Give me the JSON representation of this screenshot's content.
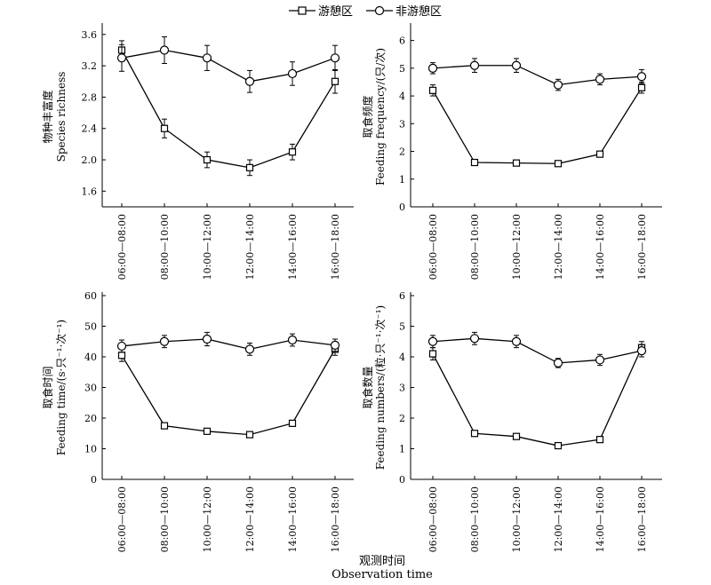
{
  "legend": {
    "series_a": "游憩区",
    "series_b": "非游憩区"
  },
  "x_title_cn": "观测时间",
  "x_title_en": "Observation time",
  "chart_data": [
    {
      "type": "line",
      "ylabel_cn": "物种丰富度",
      "ylabel_en": "Species richness",
      "ylim": [
        1.4,
        3.7
      ],
      "yticks": [
        1.6,
        2.0,
        2.4,
        2.8,
        3.2,
        3.6
      ],
      "ytick_labels": [
        "1.6",
        "2.0",
        "2.4",
        "2.8",
        "3.2",
        "3.6"
      ],
      "categories": [
        "06:00—08:00",
        "08:00—10:00",
        "10:00—12:00",
        "12:00—14:00",
        "14:00—16:00",
        "16:00—18:00"
      ],
      "series": [
        {
          "name": "游憩区",
          "marker": "square",
          "values": [
            3.4,
            2.4,
            2.0,
            1.9,
            2.1,
            3.0
          ],
          "err": [
            0.12,
            0.12,
            0.1,
            0.1,
            0.1,
            0.15
          ]
        },
        {
          "name": "非游憩区",
          "marker": "circle",
          "values": [
            3.3,
            3.4,
            3.3,
            3.0,
            3.1,
            3.3
          ],
          "err": [
            0.17,
            0.17,
            0.16,
            0.14,
            0.15,
            0.16
          ]
        }
      ]
    },
    {
      "type": "line",
      "ylabel_cn": "取食频度",
      "ylabel_en": "Feeding frequency/(只/次)",
      "ylim": [
        0,
        6.5
      ],
      "yticks": [
        0,
        1,
        2,
        3,
        4,
        5,
        6
      ],
      "ytick_labels": [
        "0",
        "1",
        "2",
        "3",
        "4",
        "5",
        "6"
      ],
      "categories": [
        "06:00—08:00",
        "08:00—10:00",
        "10:00—12:00",
        "12:00—14:00",
        "14:00—16:00",
        "16:00—18:00"
      ],
      "series": [
        {
          "name": "游憩区",
          "marker": "square",
          "values": [
            4.2,
            1.6,
            1.58,
            1.56,
            1.9,
            4.3
          ],
          "err": [
            0.2,
            0.05,
            0.05,
            0.05,
            0.06,
            0.2
          ]
        },
        {
          "name": "非游憩区",
          "marker": "circle",
          "values": [
            5.0,
            5.1,
            5.1,
            4.4,
            4.6,
            4.7
          ],
          "err": [
            0.2,
            0.25,
            0.25,
            0.2,
            0.2,
            0.25
          ]
        }
      ]
    },
    {
      "type": "line",
      "ylabel_cn": "取食时间",
      "ylabel_en": "Feeding time/(s·只⁻¹·次⁻¹)",
      "ylim": [
        0,
        60
      ],
      "yticks": [
        0,
        10,
        20,
        30,
        40,
        50,
        60
      ],
      "ytick_labels": [
        "0",
        "10",
        "20",
        "30",
        "40",
        "50",
        "60"
      ],
      "categories": [
        "06:00—08:00",
        "08:00—10:00",
        "10:00—12:00",
        "12:00—14:00",
        "14:00—16:00",
        "16:00—18:00"
      ],
      "series": [
        {
          "name": "游憩区",
          "marker": "square",
          "values": [
            40.5,
            17.5,
            15.7,
            14.6,
            18.3,
            42.5
          ],
          "err": [
            2.0,
            0.6,
            0.6,
            0.6,
            0.6,
            2.0
          ]
        },
        {
          "name": "非游憩区",
          "marker": "circle",
          "values": [
            43.5,
            45.0,
            45.8,
            42.5,
            45.5,
            43.8
          ],
          "err": [
            2.0,
            2.0,
            2.2,
            2.0,
            2.0,
            2.0
          ]
        }
      ]
    },
    {
      "type": "line",
      "ylabel_cn": "取食数量",
      "ylabel_en": "Feeding numbers/(粒·只⁻¹·次⁻¹)",
      "ylim": [
        0,
        6
      ],
      "yticks": [
        0,
        1,
        2,
        3,
        4,
        5,
        6
      ],
      "ytick_labels": [
        "0",
        "1",
        "2",
        "3",
        "4",
        "5",
        "6"
      ],
      "categories": [
        "06:00—08:00",
        "08:00—10:00",
        "10:00—12:00",
        "12:00—14:00",
        "14:00—16:00",
        "16:00—18:00"
      ],
      "series": [
        {
          "name": "游憩区",
          "marker": "square",
          "values": [
            4.1,
            1.5,
            1.4,
            1.1,
            1.3,
            4.3
          ],
          "err": [
            0.2,
            0.05,
            0.05,
            0.05,
            0.05,
            0.2
          ]
        },
        {
          "name": "非游憩区",
          "marker": "circle",
          "values": [
            4.5,
            4.6,
            4.5,
            3.8,
            3.9,
            4.2
          ],
          "err": [
            0.2,
            0.2,
            0.2,
            0.15,
            0.18,
            0.2
          ]
        }
      ]
    }
  ]
}
